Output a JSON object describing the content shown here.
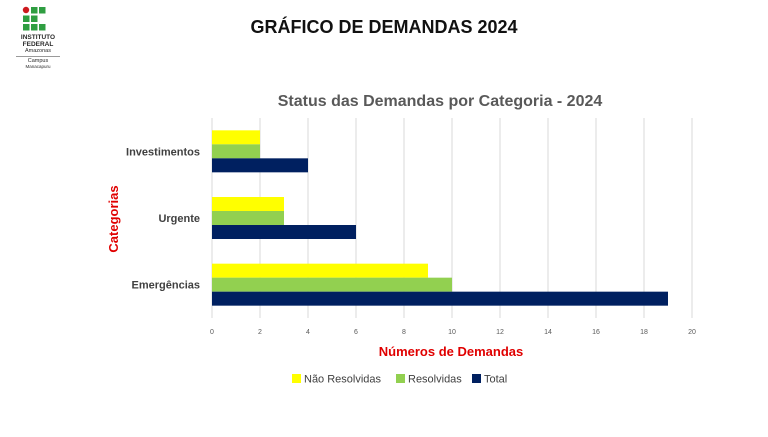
{
  "page_title": "GRÁFICO DE DEMANDAS 2024",
  "logo": {
    "name_lines": [
      "INSTITUTO",
      "FEDERAL"
    ],
    "state": "Amazonas",
    "campus_label": "Campus",
    "campus_name": "Manacapuru",
    "colors": {
      "green": "#2f9e41",
      "red": "#cd191e"
    }
  },
  "chart_data": {
    "type": "bar",
    "orientation": "horizontal",
    "title": "Status das Demandas por Categoria - 2024",
    "xlabel": "Números de Demandas",
    "ylabel": "Categorias",
    "categories": [
      "Investimentos",
      "Urgente",
      "Emergências"
    ],
    "series": [
      {
        "name": "Não Resolvidas",
        "color": "#ffff00",
        "values": [
          2,
          3,
          9
        ]
      },
      {
        "name": "Resolvidas",
        "color": "#92d050",
        "values": [
          2,
          3,
          10
        ]
      },
      {
        "name": "Total",
        "color": "#002060",
        "values": [
          4,
          6,
          19
        ]
      }
    ],
    "xlim": [
      0,
      20
    ],
    "xticks": [
      "0",
      "2",
      "4",
      "6",
      "8",
      "10",
      "12",
      "14",
      "16",
      "18",
      "20"
    ],
    "grid": true,
    "legend": "bottom",
    "title_color": "#595959",
    "axis_label_color": "#e00000"
  }
}
